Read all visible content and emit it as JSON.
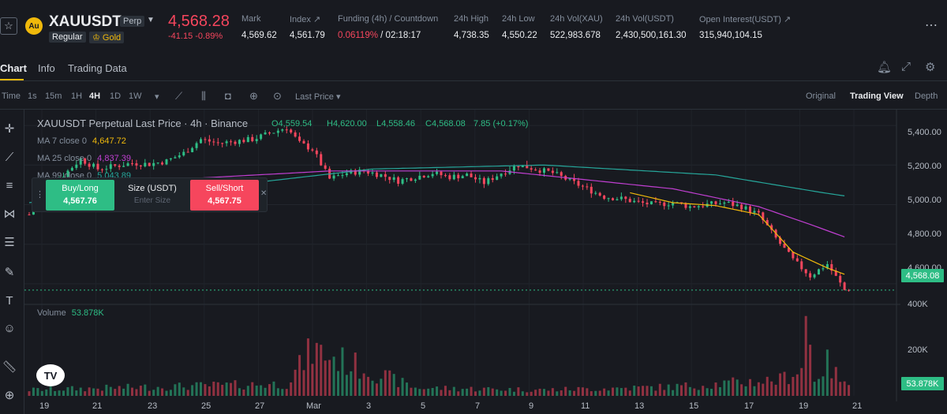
{
  "header": {
    "symbol": "XAUUSDT",
    "perp_tag": "Perp",
    "regular_tag": "Regular",
    "gold_tag": "Gold",
    "last_price": "4,568.28",
    "change": "-41.15 -0.89%",
    "stats": [
      {
        "label": "Mark",
        "value": "4,569.62"
      },
      {
        "label": "Index ↗",
        "value": "4,561.79"
      },
      {
        "label": "Funding (4h) / Countdown",
        "value_rate": "0.06119%",
        "value_countdown": "/ 02:18:17"
      },
      {
        "label": "24h High",
        "value": "4,738.35"
      },
      {
        "label": "24h Low",
        "value": "4,550.22"
      },
      {
        "label": "24h Vol(XAU)",
        "value": "522,983.678"
      },
      {
        "label": "24h Vol(USDT)",
        "value": "2,430,500,161.30"
      },
      {
        "label": "Open Interest(USDT) ↗",
        "value": "315,940,104.15"
      }
    ]
  },
  "tabs": [
    "Chart",
    "Info",
    "Trading Data"
  ],
  "toolbar": {
    "time_label": "Time",
    "intervals": [
      "1s",
      "15m",
      "1H",
      "4H",
      "1D",
      "1W"
    ],
    "active_interval": "4H",
    "price_type": "Last Price",
    "views": [
      "Original",
      "Trading View",
      "Depth"
    ],
    "active_view": "Trading View"
  },
  "legend": {
    "title": "XAUUSDT Perpetual Last Price · 4h · Binance",
    "open": "O4,559.54",
    "high": "H4,620.00",
    "low": "L4,558.46",
    "close": "C4,568.08",
    "change": "7.85 (+0.17%)",
    "ma7_label": "MA 7 close 0",
    "ma7_value": "4,647.72",
    "ma25_label": "MA 25 close 0",
    "ma25_value": "4,837.39",
    "ma99_label": "MA 99 close 0",
    "ma99_value": "5,043.89",
    "volume_label": "Volume",
    "volume_value": "53.878K"
  },
  "order_widget": {
    "buy_label": "Buy/Long",
    "buy_price": "4,567.76",
    "size_label": "Size (USDT)",
    "size_placeholder": "Enter Size",
    "sell_label": "Sell/Short",
    "sell_price": "4,567.75"
  },
  "price_axis": [
    "5,400.00",
    "5,200.00",
    "5,000.00",
    "4,800.00",
    "4,600.00"
  ],
  "current_price_tag": "4,568.08",
  "volume_axis": [
    "400K",
    "200K"
  ],
  "volume_tag": "53.878K",
  "date_axis": [
    "19",
    "21",
    "23",
    "25",
    "27",
    "Mar",
    "3",
    "5",
    "7",
    "9",
    "11",
    "13",
    "15",
    "17",
    "19",
    "21"
  ],
  "colors": {
    "up": "#2ebd85",
    "down": "#f6465d",
    "ma7": "#f0b90b",
    "ma25": "#c03fd1",
    "ma99": "#26a69a",
    "accent": "#f0b90b"
  },
  "chart_data": {
    "type": "candlestick",
    "interval": "4h",
    "ylim": [
      4500,
      5480
    ],
    "price_ticks": [
      5400,
      5200,
      5000,
      4800,
      4600
    ],
    "volume_ticks": [
      400000,
      200000
    ],
    "last_close": 4568.08,
    "ohlc_path": [
      [
        0,
        4950
      ],
      [
        4,
        5080
      ],
      [
        8,
        5150
      ],
      [
        12,
        5230
      ],
      [
        16,
        5180
      ],
      [
        20,
        5195
      ],
      [
        24,
        5210
      ],
      [
        28,
        5205
      ],
      [
        32,
        5220
      ],
      [
        36,
        5260
      ],
      [
        40,
        5330
      ],
      [
        44,
        5310
      ],
      [
        48,
        5320
      ],
      [
        52,
        5330
      ],
      [
        56,
        5360
      ],
      [
        60,
        5390
      ],
      [
        63,
        5310
      ],
      [
        66,
        5280
      ],
      [
        70,
        5130
      ],
      [
        74,
        5160
      ],
      [
        78,
        5170
      ],
      [
        82,
        5150
      ],
      [
        86,
        5120
      ],
      [
        90,
        5140
      ],
      [
        94,
        5160
      ],
      [
        98,
        5140
      ],
      [
        102,
        5150
      ],
      [
        106,
        5110
      ],
      [
        110,
        5160
      ],
      [
        114,
        5200
      ],
      [
        118,
        5180
      ],
      [
        122,
        5160
      ],
      [
        126,
        5120
      ],
      [
        130,
        5080
      ],
      [
        134,
        5040
      ],
      [
        138,
        5030
      ],
      [
        142,
        5010
      ],
      [
        146,
        5000
      ],
      [
        150,
        5010
      ],
      [
        154,
        4990
      ],
      [
        158,
        5000
      ],
      [
        162,
        5010
      ],
      [
        166,
        4990
      ],
      [
        170,
        4950
      ],
      [
        174,
        4830
      ],
      [
        178,
        4720
      ],
      [
        182,
        4640
      ],
      [
        186,
        4700
      ],
      [
        190,
        4568
      ]
    ],
    "volume_path": [
      [
        0,
        30000
      ],
      [
        30,
        45000
      ],
      [
        60,
        60000
      ],
      [
        66,
        230000
      ],
      [
        90,
        40000
      ],
      [
        120,
        30000
      ],
      [
        150,
        45000
      ],
      [
        175,
        80000
      ],
      [
        180,
        140000
      ],
      [
        181,
        400000
      ],
      [
        183,
        90000
      ],
      [
        186,
        160000
      ],
      [
        190,
        53878
      ]
    ],
    "ma7_path": [
      [
        140,
        5060
      ],
      [
        150,
        5010
      ],
      [
        160,
        4995
      ],
      [
        170,
        4950
      ],
      [
        178,
        4760
      ],
      [
        186,
        4680
      ],
      [
        190,
        4648
      ]
    ],
    "ma25_path": [
      [
        36,
        5130
      ],
      [
        70,
        5170
      ],
      [
        110,
        5170
      ],
      [
        150,
        5080
      ],
      [
        170,
        4990
      ],
      [
        182,
        4900
      ],
      [
        190,
        4837
      ]
    ],
    "ma99_path": [
      [
        0,
        5010
      ],
      [
        40,
        5080
      ],
      [
        80,
        5180
      ],
      [
        120,
        5200
      ],
      [
        160,
        5150
      ],
      [
        185,
        5060
      ],
      [
        190,
        5044
      ]
    ]
  }
}
